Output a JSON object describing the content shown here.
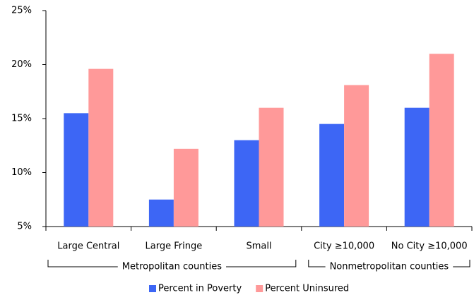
{
  "chart_data": {
    "type": "bar",
    "categories": [
      "Large Central",
      "Large Fringe",
      "Small",
      "City ≥10,000",
      "No City ≥10,000"
    ],
    "series": [
      {
        "name": "Percent in Poverty",
        "color": "#3d66f5",
        "values": [
          15.5,
          7.5,
          13.0,
          14.5,
          16.0
        ]
      },
      {
        "name": "Percent Uninsured",
        "color": "#ff9999",
        "values": [
          19.6,
          12.2,
          16.0,
          18.1,
          21.0
        ]
      }
    ],
    "groups": [
      "Metropolitan counties",
      "Nonmetropolitan counties"
    ],
    "ylim": [
      5,
      25
    ],
    "yticks": [
      {
        "value": 5,
        "label": "5%"
      },
      {
        "value": 10,
        "label": "10%"
      },
      {
        "value": 15,
        "label": "15%"
      },
      {
        "value": 20,
        "label": "20%"
      },
      {
        "value": 25,
        "label": "25%"
      }
    ],
    "grid": false,
    "legend": "bottom"
  }
}
